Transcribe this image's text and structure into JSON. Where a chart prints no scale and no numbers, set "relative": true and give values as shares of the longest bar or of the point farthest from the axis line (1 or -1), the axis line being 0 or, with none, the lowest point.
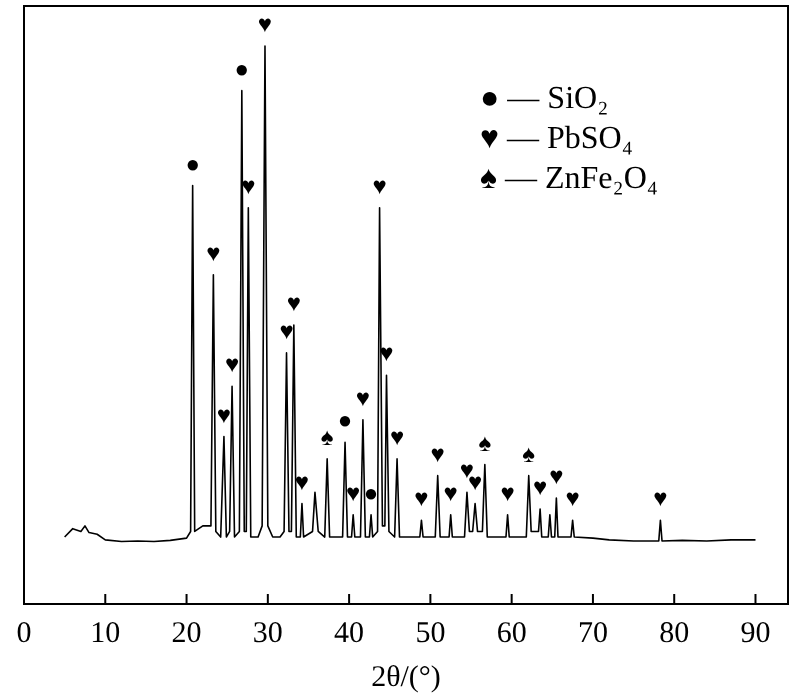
{
  "chart_data": {
    "type": "line",
    "relative": true,
    "xlabel": "2θ/(°)",
    "xlim": [
      0,
      94
    ],
    "xticks": [
      0,
      10,
      20,
      30,
      40,
      50,
      60,
      70,
      80,
      90
    ],
    "grid": false,
    "line_style": "solid",
    "series": [
      {
        "color": "#000000",
        "x": [
          5,
          6,
          7,
          7.5,
          8,
          9,
          10,
          12,
          14,
          16,
          18,
          20,
          20.5,
          20.75,
          21,
          22,
          23,
          23.3,
          23.6,
          24.2,
          24.6,
          24.9,
          25.3,
          25.6,
          25.9,
          26.5,
          26.8,
          27.1,
          27.35,
          27.6,
          27.9,
          28.8,
          29.3,
          29.65,
          30,
          30.6,
          31.5,
          32,
          32.3,
          32.6,
          32.9,
          33.2,
          33.5,
          34,
          34.2,
          34.4,
          35.5,
          35.8,
          36.2,
          37,
          37.3,
          37.6,
          39.2,
          39.5,
          39.8,
          40.3,
          40.5,
          40.7,
          41.4,
          41.7,
          42,
          42.5,
          42.7,
          42.9,
          43.5,
          43.75,
          44.1,
          44.4,
          44.6,
          44.9,
          45.6,
          45.9,
          46.2,
          48.7,
          48.9,
          49.1,
          50.6,
          50.9,
          51.2,
          52.3,
          52.5,
          52.7,
          54.2,
          54.5,
          54.8,
          55.2,
          55.5,
          55.8,
          56.4,
          56.7,
          57,
          59.3,
          59.5,
          59.7,
          61.8,
          62.1,
          62.4,
          63.3,
          63.5,
          63.7,
          64.5,
          64.7,
          64.9,
          65.3,
          65.5,
          65.7,
          67.3,
          67.5,
          67.7,
          70,
          72,
          75,
          78.1,
          78.3,
          78.5,
          81,
          84,
          87,
          90
        ],
        "values": [
          0.12,
          0.135,
          0.13,
          0.14,
          0.128,
          0.125,
          0.115,
          0.112,
          0.113,
          0.112,
          0.114,
          0.118,
          0.13,
          0.75,
          0.13,
          0.14,
          0.14,
          0.59,
          0.13,
          0.12,
          0.3,
          0.12,
          0.13,
          0.39,
          0.12,
          0.13,
          0.92,
          0.13,
          0.13,
          0.71,
          0.12,
          0.12,
          0.14,
          1,
          0.14,
          0.12,
          0.12,
          0.13,
          0.45,
          0.13,
          0.13,
          0.5,
          0.12,
          0.12,
          0.18,
          0.12,
          0.13,
          0.2,
          0.13,
          0.12,
          0.26,
          0.12,
          0.12,
          0.29,
          0.12,
          0.12,
          0.16,
          0.12,
          0.12,
          0.33,
          0.12,
          0.12,
          0.16,
          0.12,
          0.13,
          0.71,
          0.14,
          0.14,
          0.41,
          0.13,
          0.12,
          0.26,
          0.12,
          0.12,
          0.15,
          0.12,
          0.12,
          0.23,
          0.12,
          0.12,
          0.16,
          0.12,
          0.12,
          0.2,
          0.13,
          0.13,
          0.18,
          0.13,
          0.13,
          0.25,
          0.12,
          0.12,
          0.16,
          0.12,
          0.12,
          0.23,
          0.13,
          0.13,
          0.17,
          0.12,
          0.12,
          0.16,
          0.12,
          0.12,
          0.19,
          0.12,
          0.12,
          0.15,
          0.12,
          0.118,
          0.115,
          0.113,
          0.113,
          0.15,
          0.113,
          0.114,
          0.113,
          0.115,
          0.115
        ]
      }
    ],
    "annotations": [
      "● — SiO₂",
      "♥ — PbSO₄",
      "♠ — ZnFe₂O₄",
      {
        "text": "●",
        "x": 20.75,
        "y": 0.75
      },
      {
        "text": "♥",
        "x": 23.3,
        "y": 0.59
      },
      {
        "text": "♥",
        "x": 24.6,
        "y": 0.3
      },
      {
        "text": "♥",
        "x": 25.6,
        "y": 0.39
      },
      {
        "text": "●",
        "x": 26.8,
        "y": 0.92
      },
      {
        "text": "♥",
        "x": 27.6,
        "y": 0.71
      },
      {
        "text": "♥",
        "x": 29.65,
        "y": 1
      },
      {
        "text": "♥",
        "x": 32.3,
        "y": 0.45
      },
      {
        "text": "♥",
        "x": 33.2,
        "y": 0.5
      },
      {
        "text": "♥",
        "x": 34.2,
        "y": 0.18
      },
      {
        "text": "♠",
        "x": 37.3,
        "y": 0.26
      },
      {
        "text": "●",
        "x": 39.5,
        "y": 0.29
      },
      {
        "text": "♥",
        "x": 40.5,
        "y": 0.16
      },
      {
        "text": "♥",
        "x": 41.7,
        "y": 0.33
      },
      {
        "text": "●",
        "x": 42.7,
        "y": 0.16
      },
      {
        "text": "♥",
        "x": 43.75,
        "y": 0.71
      },
      {
        "text": "♥",
        "x": 44.6,
        "y": 0.41
      },
      {
        "text": "♥",
        "x": 45.9,
        "y": 0.26
      },
      {
        "text": "♥",
        "x": 48.9,
        "y": 0.15
      },
      {
        "text": "♥",
        "x": 50.9,
        "y": 0.23
      },
      {
        "text": "♥",
        "x": 52.5,
        "y": 0.16
      },
      {
        "text": "♥",
        "x": 54.5,
        "y": 0.2
      },
      {
        "text": "♥",
        "x": 55.5,
        "y": 0.18
      },
      {
        "text": "♠",
        "x": 56.7,
        "y": 0.25
      },
      {
        "text": "♥",
        "x": 59.5,
        "y": 0.16
      },
      {
        "text": "♠",
        "x": 62.1,
        "y": 0.23
      },
      {
        "text": "♥",
        "x": 63.5,
        "y": 0.17
      },
      {
        "text": "♥",
        "x": 65.5,
        "y": 0.19
      },
      {
        "text": "♥",
        "x": 67.5,
        "y": 0.15
      },
      {
        "text": "♥",
        "x": 78.3,
        "y": 0.15
      }
    ]
  }
}
